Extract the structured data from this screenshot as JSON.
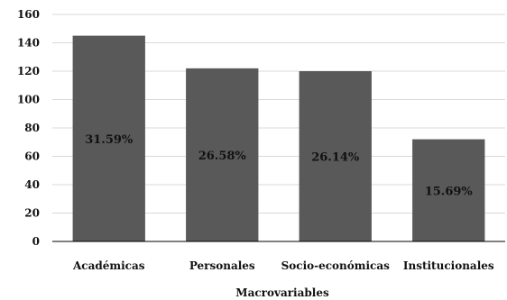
{
  "chart_data": {
    "type": "bar",
    "title": "",
    "xlabel": "Macrovariables",
    "ylabel": "",
    "categories": [
      "Académicas",
      "Personales",
      "Socio-económicas",
      "Institucionales"
    ],
    "values": [
      145,
      122,
      120,
      72
    ],
    "data_labels": [
      "31.59%",
      "26.58%",
      "26.14%",
      "15.69%"
    ],
    "ylim": [
      0,
      160
    ],
    "yticks": [
      0,
      20,
      40,
      60,
      80,
      100,
      120,
      140,
      160
    ],
    "grid": true,
    "legend": "none",
    "colors": {
      "bar": "#595959",
      "grid": "#d9d9d9",
      "axis": "#000000"
    }
  }
}
